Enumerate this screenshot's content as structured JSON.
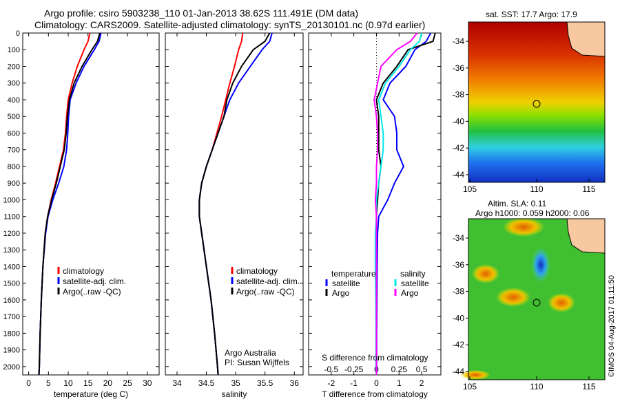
{
  "title_line1": "Argo profile: csiro 5903238_110 01-Jan-2013 38.62S 111.491E (DM data)",
  "title_line2": "Climatology: CARS2009. Satellite-adjusted climatology: synTS_20130101.nc (0.97d earlier)",
  "colors": {
    "climatology": "#ff0000",
    "satellite": "#0000ff",
    "argo": "#000000",
    "sal_satellite": "#00e8e8",
    "sal_argo": "#ff00ff"
  },
  "chart_data": [
    {
      "type": "line",
      "name": "temperature",
      "xlabel": "temperature (deg C)",
      "ylabel": "depth",
      "xlim": [
        -1.5,
        33
      ],
      "ylim": [
        2050,
        0
      ],
      "xticks": [
        0,
        5,
        10,
        15,
        20,
        25,
        30
      ],
      "yticks": [
        0,
        100,
        200,
        300,
        400,
        500,
        600,
        700,
        800,
        900,
        1000,
        1100,
        1200,
        1300,
        1400,
        1500,
        1600,
        1700,
        1800,
        1900,
        2000
      ],
      "legend": [
        "climatology",
        "satellite-adj. clim.",
        "Argo(..raw -QC)"
      ],
      "depth": [
        0,
        50,
        100,
        200,
        300,
        400,
        500,
        600,
        700,
        800,
        900,
        1000,
        1100,
        1200,
        1400,
        1600,
        1800,
        2000,
        2050
      ],
      "series": [
        {
          "name": "climatology",
          "color": "#ff0000",
          "values": [
            15.5,
            15,
            14,
            12.3,
            11,
            10,
            9.6,
            9.3,
            8.8,
            7.8,
            6.8,
            5.7,
            4.8,
            4.2,
            3.6,
            3.2,
            2.9,
            2.7,
            2.6
          ]
        },
        {
          "name": "satellite-adj. clim.",
          "color": "#0000ff",
          "values": [
            18.3,
            17.8,
            16.6,
            14,
            12,
            10.5,
            10.1,
            9.9,
            9.6,
            8.9,
            7.6,
            6.1,
            4.9,
            4.3,
            3.6,
            3.2,
            2.9,
            2.7,
            2.6
          ]
        },
        {
          "name": "Argo(..raw -QC)",
          "color": "#000000",
          "values": [
            18,
            17.4,
            16,
            13.5,
            11.5,
            10.3,
            9.8,
            9.5,
            9,
            8,
            7,
            5.8,
            4.8,
            4.2,
            3.6,
            3.2,
            2.9,
            2.7,
            2.6
          ]
        }
      ]
    },
    {
      "type": "line",
      "name": "salinity",
      "xlabel": "salinity",
      "xlim": [
        33.8,
        36.15
      ],
      "ylim": [
        2050,
        0
      ],
      "xticks": [
        34,
        34.5,
        35,
        35.5,
        36
      ],
      "legend": [
        "climatology",
        "satellite-adj. clim.",
        "Argo(..raw -QC)"
      ],
      "annotation": [
        "Argo Australia",
        "PI: Susan Wijffels"
      ],
      "depth": [
        0,
        50,
        100,
        200,
        300,
        400,
        500,
        600,
        700,
        800,
        900,
        1000,
        1100,
        1200,
        1400,
        1600,
        1800,
        2000,
        2050
      ],
      "series": [
        {
          "name": "climatology",
          "color": "#ff0000",
          "values": [
            35.12,
            35.1,
            35.05,
            34.98,
            34.9,
            34.83,
            34.76,
            34.68,
            34.6,
            34.5,
            34.42,
            34.38,
            34.38,
            34.42,
            34.5,
            34.58,
            34.64,
            34.69,
            34.7
          ]
        },
        {
          "name": "satellite-adj. clim.",
          "color": "#0000ff",
          "values": [
            35.62,
            35.58,
            35.45,
            35.25,
            35.05,
            34.9,
            34.8,
            34.7,
            34.6,
            34.5,
            34.42,
            34.38,
            34.38,
            34.42,
            34.5,
            34.58,
            34.64,
            34.69,
            34.7
          ]
        },
        {
          "name": "Argo(..raw -QC)",
          "color": "#000000",
          "values": [
            35.58,
            35.5,
            35.3,
            35.1,
            34.95,
            34.85,
            34.8,
            34.7,
            34.6,
            34.5,
            34.42,
            34.38,
            34.38,
            34.42,
            34.5,
            34.58,
            34.64,
            34.69,
            34.7
          ]
        }
      ]
    },
    {
      "type": "line",
      "name": "difference",
      "xlabel": "T difference from climatology",
      "x2label": "S difference from climatology",
      "xlim": [
        -3,
        2.85
      ],
      "ylim": [
        2050,
        0
      ],
      "xticks": [
        -2,
        -1,
        0,
        1,
        2
      ],
      "x2ticks": [
        "-0.5",
        "-0.25",
        "0",
        "0.25",
        "0.5"
      ],
      "legend_temperature": {
        "heading": "temperature",
        "items": [
          "satellite",
          "Argo"
        ]
      },
      "legend_salinity": {
        "heading": "salinity",
        "items": [
          "satellite",
          "Argo"
        ]
      },
      "depth": [
        0,
        50,
        100,
        200,
        300,
        400,
        500,
        600,
        700,
        800,
        900,
        1000,
        1100,
        1200,
        1400,
        1600,
        1800,
        2000,
        2050
      ],
      "series": [
        {
          "name": "T satellite",
          "color": "#0000ff",
          "values": [
            2.4,
            2.2,
            1.7,
            1.3,
            0.6,
            0.3,
            0.8,
            0.9,
            0.9,
            1.2,
            0.8,
            0.5,
            0.1,
            0.05,
            0.03,
            0.02,
            0.01,
            0.01,
            0
          ]
        },
        {
          "name": "T Argo",
          "color": "#000000",
          "values": [
            2.6,
            2.5,
            1.4,
            0.9,
            0.3,
            0,
            0.1,
            0.1,
            0.1,
            0.2,
            0.1,
            0.05,
            0,
            0,
            0,
            0,
            0,
            0,
            0
          ]
        },
        {
          "name": "S satellite",
          "color": "#00e8e8",
          "values": [
            2,
            1.9,
            1.5,
            1,
            0.4,
            0.1,
            0.2,
            0.3,
            0.3,
            0.2,
            0.1,
            0,
            0,
            -0.05,
            -0.05,
            -0.03,
            -0.02,
            -0.02,
            0
          ]
        },
        {
          "name": "S Argo",
          "color": "#ff00ff",
          "values": [
            1.8,
            1.5,
            0.9,
            0.2,
            0.05,
            -0.1,
            0,
            0.05,
            0.05,
            0,
            0,
            -0.05,
            0,
            0,
            0,
            0,
            0,
            0,
            0
          ]
        }
      ]
    }
  ],
  "map_sst": {
    "title": "sat. SST: 17.7 Argo: 17.9",
    "lon_ticks": [
      "105",
      "110",
      "115"
    ],
    "lat_ticks": [
      "-34",
      "-36",
      "-38",
      "-40",
      "-42",
      "-44"
    ]
  },
  "map_sla": {
    "title1": "Altim. SLA: 0.11",
    "title2": "Argo h1000: 0.059 h2000: 0.06",
    "lon_ticks": [
      "105",
      "110",
      "115"
    ],
    "lat_ticks": [
      "-34",
      "-36",
      "-38",
      "-40",
      "-42",
      "-44"
    ]
  },
  "credit": "©IMOS 04-Aug-2017 01:11:50"
}
